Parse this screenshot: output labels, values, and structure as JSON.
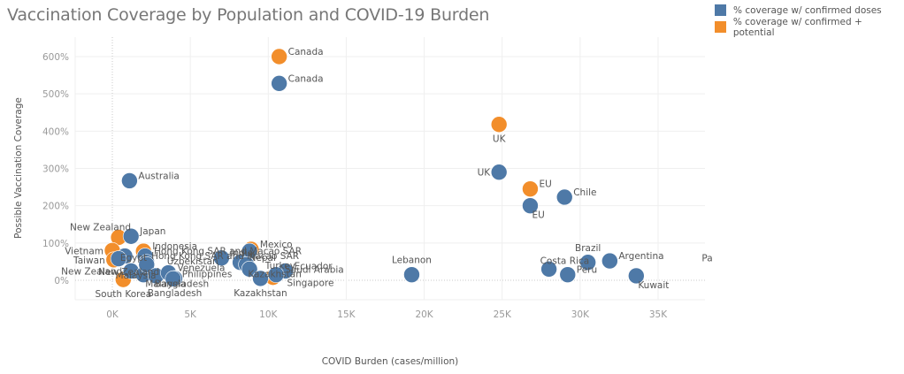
{
  "title": "Vaccination Coverage by Population and COVID-19 Burden",
  "legend": [
    {
      "label": "% coverage w/ confirmed doses",
      "color": "#4e79a7"
    },
    {
      "label": "% coverage w/ confirmed + potential",
      "color": "#f28e2b"
    }
  ],
  "chart_data": {
    "type": "scatter",
    "title": "Vaccination Coverage by Population and COVID-19 Burden",
    "xlabel": "COVID Burden (cases/million)",
    "ylabel": "Possible Vaccination Coverage",
    "xlim": [
      -2400,
      38400
    ],
    "ylim": [
      -52,
      645
    ],
    "xticks": [
      0,
      5000,
      10000,
      15000,
      20000,
      25000,
      30000,
      35000
    ],
    "xtick_labels": [
      "0K",
      "5K",
      "10K",
      "15K",
      "20K",
      "25K",
      "30K",
      "35K"
    ],
    "yticks": [
      0,
      100,
      200,
      300,
      400,
      500,
      600
    ],
    "ytick_labels": [
      "0%",
      "100%",
      "200%",
      "300%",
      "400%",
      "500%",
      "600%"
    ],
    "grid": true,
    "legend_position": "top-right",
    "series": [
      {
        "name": "% coverage w/ confirmed + potential",
        "color": "#f28e2b",
        "points": [
          {
            "label": "Canada",
            "x": 10700,
            "y": 600,
            "label_pos": "right"
          },
          {
            "label": "UK",
            "x": 24800,
            "y": 418,
            "label_pos": "below"
          },
          {
            "label": "EU",
            "x": 26800,
            "y": 245,
            "label_pos": "right"
          },
          {
            "label": "New Zealand",
            "x": 400,
            "y": 115,
            "label_pos": "above-left"
          },
          {
            "label": "Vietnam",
            "x": 0,
            "y": 80,
            "label_pos": "left"
          },
          {
            "label": "Taiwan",
            "x": 100,
            "y": 55,
            "label_pos": "left"
          },
          {
            "label": "Indonesia",
            "x": 2000,
            "y": 78,
            "label_pos": "right"
          },
          {
            "label": "Mexico",
            "x": 8900,
            "y": 83,
            "label_pos": "right"
          },
          {
            "label": "Turkey",
            "x": 10300,
            "y": 8,
            "label_pos": "none"
          },
          {
            "label": "South Korea",
            "x": 700,
            "y": 2,
            "label_pos": "below"
          }
        ]
      },
      {
        "name": "% coverage w/ confirmed doses",
        "color": "#4e79a7",
        "points": [
          {
            "label": "Canada",
            "x": 10700,
            "y": 528,
            "label_pos": "right"
          },
          {
            "label": "UK",
            "x": 24800,
            "y": 290,
            "label_pos": "left"
          },
          {
            "label": "EU",
            "x": 26800,
            "y": 200,
            "label_pos": "below-right"
          },
          {
            "label": "Chile",
            "x": 29000,
            "y": 223,
            "label_pos": "right"
          },
          {
            "label": "Australia",
            "x": 1100,
            "y": 267,
            "label_pos": "right"
          },
          {
            "label": "Japan",
            "x": 1200,
            "y": 118,
            "label_pos": "right"
          },
          {
            "label": "Egypt",
            "x": 800,
            "y": 65,
            "label_pos": "none"
          },
          {
            "label": "Egypt",
            "x": 400,
            "y": 58,
            "label_pos": "none"
          },
          {
            "label": "Hong Kong SAR and Macao SAR",
            "x": 2100,
            "y": 65,
            "label_pos": "right"
          },
          {
            "label": "Malaysia",
            "x": 2200,
            "y": 48,
            "label_pos": "none"
          },
          {
            "label": "New Zealand",
            "x": 1200,
            "y": 25,
            "label_pos": "left"
          },
          {
            "label": "Malaysia",
            "x": 2000,
            "y": 15,
            "label_pos": "below-right"
          },
          {
            "label": "Uzbekistan",
            "x": 2200,
            "y": 42,
            "label_pos": "none"
          },
          {
            "label": "Bangladesh",
            "x": 2800,
            "y": 12,
            "label_pos": "none"
          },
          {
            "label": "Venezuela",
            "x": 3600,
            "y": 20,
            "label_pos": "right"
          },
          {
            "label": "Bangladesh",
            "x": 4000,
            "y": 5,
            "label_pos": "below"
          },
          {
            "label": "Philippines",
            "x": 3900,
            "y": 4,
            "label_pos": "right"
          },
          {
            "label": "India",
            "x": 7000,
            "y": 60,
            "label_pos": "right"
          },
          {
            "label": "Macao",
            "x": 8800,
            "y": 78,
            "label_pos": "none"
          },
          {
            "label": "Nepal",
            "x": 8200,
            "y": 48,
            "label_pos": "right"
          },
          {
            "label": "Nepal",
            "x": 8600,
            "y": 42,
            "label_pos": "none"
          },
          {
            "label": "Kazakhstan",
            "x": 8800,
            "y": 30,
            "label_pos": "none"
          },
          {
            "label": "Kazakhstan",
            "x": 9500,
            "y": 5,
            "label_pos": "below"
          },
          {
            "label": "Ecuador",
            "x": 11100,
            "y": 25,
            "label_pos": "right"
          },
          {
            "label": "Saudi Arabia",
            "x": 10500,
            "y": 15,
            "label_pos": "right"
          },
          {
            "label": "Lebanon",
            "x": 19200,
            "y": 15,
            "label_pos": "above"
          },
          {
            "label": "Costa Rica",
            "x": 28000,
            "y": 30,
            "label_pos": "above-right"
          },
          {
            "label": "Peru",
            "x": 29200,
            "y": 15,
            "label_pos": "right"
          },
          {
            "label": "Brazil",
            "x": 30500,
            "y": 48,
            "label_pos": "above"
          },
          {
            "label": "Argentina",
            "x": 31900,
            "y": 52,
            "label_pos": "right"
          },
          {
            "label": "Kuwait",
            "x": 33600,
            "y": 12,
            "label_pos": "below-right"
          }
        ]
      }
    ],
    "annotations": [
      {
        "text": "Pa",
        "x": 37800,
        "y": 60
      },
      {
        "text": "Turkey",
        "x": 9800,
        "y": 40
      },
      {
        "text": "Kazakhstan",
        "x": 8700,
        "y": 18
      },
      {
        "text": "Singapore",
        "x": 11200,
        "y": -6
      },
      {
        "text": "Hong Kong SAR and Macao SAR",
        "x": 2500,
        "y": 66
      },
      {
        "text": "Uzbekistan",
        "x": 3500,
        "y": 52
      },
      {
        "text": "New Zealand",
        "x": -900,
        "y": 24
      },
      {
        "text": "Malaysia",
        "x": 200,
        "y": 14
      },
      {
        "text": "Egypt",
        "x": 500,
        "y": 62
      },
      {
        "text": "Bangladesh",
        "x": 2700,
        "y": -8
      }
    ]
  }
}
